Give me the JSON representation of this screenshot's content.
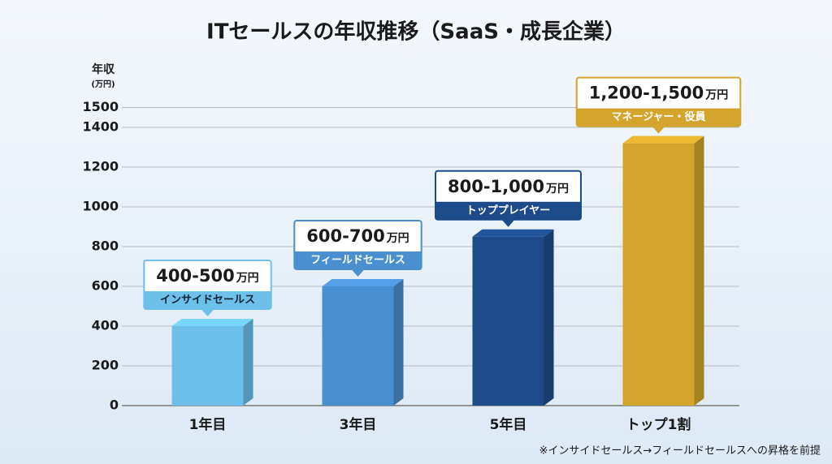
{
  "chart_data": {
    "type": "bar",
    "title": "ITセールスの年収推移（SaaS・成長企業）",
    "y_label": "年収",
    "y_unit": "(万円)",
    "categories": [
      "1年目",
      "3年目",
      "5年目",
      "トップ1割"
    ],
    "values": [
      400,
      600,
      850,
      1320
    ],
    "colors": [
      "#6cc0ea",
      "#4a8fd0",
      "#1d4b8a",
      "#d4a52c"
    ],
    "annotations": [
      {
        "range": "400-500",
        "unit": "万円",
        "role": "インサイドセールス"
      },
      {
        "range": "600-700",
        "unit": "万円",
        "role": "フィールドセールス"
      },
      {
        "range": "800-1,000",
        "unit": "万円",
        "role": "トッププレイヤー"
      },
      {
        "range": "1,200-1,500",
        "unit": "万円",
        "role": "マネージャー・役員"
      }
    ],
    "ylim": [
      0,
      1500
    ],
    "yticks": [
      0,
      200,
      400,
      600,
      800,
      1000,
      1200,
      1400,
      1500
    ],
    "grid": true,
    "footnote": "※インサイドセールス→フィールドセールスへの昇格を前提"
  }
}
